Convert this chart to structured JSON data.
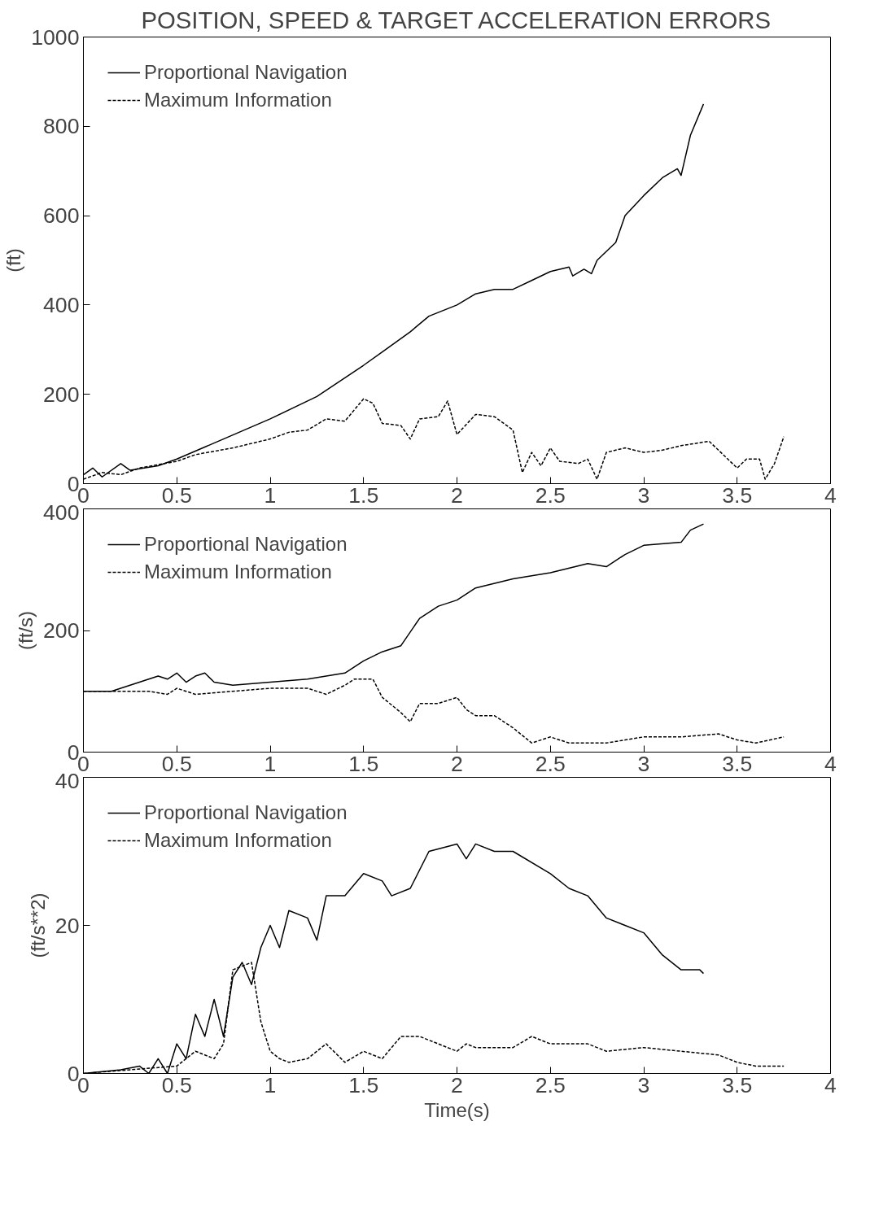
{
  "chart_data": [
    {
      "type": "line",
      "title": "POSITION, SPEED & TARGET ACCELERATION ERRORS",
      "ylabel": "(ft)",
      "xlim": [
        0,
        4
      ],
      "xticks": [
        0,
        0.5,
        1,
        1.5,
        2,
        2.5,
        3,
        3.5,
        4
      ],
      "ylim": [
        0,
        1000
      ],
      "yticks": [
        0,
        200,
        400,
        600,
        800,
        1000
      ],
      "grid": false,
      "legend": "top left",
      "series": [
        {
          "name": "Proportional Navigation",
          "color": "#000000",
          "line_style": "solid",
          "x": [
            0,
            0.05,
            0.1,
            0.2,
            0.25,
            0.4,
            0.5,
            0.75,
            1.0,
            1.25,
            1.5,
            1.6,
            1.75,
            1.85,
            2.0,
            2.1,
            2.2,
            2.3,
            2.4,
            2.5,
            2.6,
            2.62,
            2.68,
            2.72,
            2.75,
            2.8,
            2.85,
            2.9,
            3.0,
            3.1,
            3.18,
            3.2,
            3.25,
            3.32
          ],
          "values": [
            20,
            35,
            15,
            45,
            30,
            40,
            55,
            100,
            145,
            195,
            265,
            295,
            340,
            375,
            400,
            425,
            435,
            435,
            455,
            475,
            485,
            465,
            480,
            470,
            500,
            520,
            540,
            600,
            645,
            685,
            705,
            690,
            780,
            850
          ]
        },
        {
          "name": "Maximum Information",
          "color": "#000000",
          "line_style": "dashed",
          "x": [
            0,
            0.1,
            0.2,
            0.3,
            0.5,
            0.6,
            0.8,
            1.0,
            1.1,
            1.2,
            1.3,
            1.4,
            1.5,
            1.55,
            1.6,
            1.7,
            1.75,
            1.8,
            1.9,
            1.95,
            2.0,
            2.1,
            2.2,
            2.3,
            2.35,
            2.4,
            2.45,
            2.5,
            2.55,
            2.65,
            2.7,
            2.75,
            2.8,
            2.9,
            3.0,
            3.1,
            3.2,
            3.35,
            3.45,
            3.5,
            3.55,
            3.62,
            3.65,
            3.7,
            3.75
          ],
          "values": [
            10,
            25,
            20,
            35,
            50,
            65,
            80,
            100,
            115,
            120,
            145,
            140,
            190,
            180,
            135,
            130,
            100,
            145,
            150,
            185,
            110,
            155,
            150,
            120,
            25,
            70,
            40,
            80,
            50,
            45,
            55,
            10,
            70,
            80,
            70,
            75,
            85,
            95,
            55,
            35,
            55,
            55,
            10,
            45,
            105
          ]
        }
      ]
    },
    {
      "type": "line",
      "ylabel": "(ft/s)",
      "xlim": [
        0,
        4
      ],
      "xticks": [
        0,
        0.5,
        1,
        1.5,
        2,
        2.5,
        3,
        3.5,
        4
      ],
      "ylim": [
        0,
        400
      ],
      "yticks": [
        0,
        200,
        400
      ],
      "grid": false,
      "legend": "top left",
      "series": [
        {
          "name": "Proportional Navigation",
          "color": "#000000",
          "line_style": "solid",
          "x": [
            0,
            0.15,
            0.3,
            0.4,
            0.45,
            0.5,
            0.55,
            0.6,
            0.65,
            0.7,
            0.8,
            1.0,
            1.2,
            1.4,
            1.5,
            1.6,
            1.7,
            1.8,
            1.9,
            2.0,
            2.1,
            2.3,
            2.5,
            2.7,
            2.8,
            2.9,
            3.0,
            3.2,
            3.25,
            3.32
          ],
          "values": [
            100,
            100,
            115,
            125,
            120,
            130,
            115,
            125,
            130,
            115,
            110,
            115,
            120,
            130,
            150,
            165,
            175,
            220,
            240,
            250,
            270,
            285,
            295,
            310,
            305,
            325,
            340,
            345,
            365,
            375
          ]
        },
        {
          "name": "Maximum Information",
          "color": "#000000",
          "line_style": "dashed",
          "x": [
            0,
            0.2,
            0.35,
            0.45,
            0.5,
            0.6,
            0.8,
            1.0,
            1.2,
            1.3,
            1.4,
            1.45,
            1.55,
            1.6,
            1.7,
            1.75,
            1.8,
            1.9,
            2.0,
            2.05,
            2.1,
            2.2,
            2.3,
            2.4,
            2.5,
            2.6,
            2.8,
            2.9,
            3.0,
            3.2,
            3.4,
            3.5,
            3.6,
            3.75
          ],
          "values": [
            100,
            100,
            100,
            95,
            105,
            95,
            100,
            105,
            105,
            95,
            110,
            120,
            120,
            90,
            65,
            50,
            80,
            80,
            90,
            70,
            60,
            60,
            40,
            15,
            25,
            15,
            15,
            20,
            25,
            25,
            30,
            20,
            15,
            25
          ]
        }
      ]
    },
    {
      "type": "line",
      "ylabel": "(ft/s**2)",
      "xlabel": "Time(s)",
      "xlim": [
        0,
        4
      ],
      "xticks": [
        0,
        0.5,
        1,
        1.5,
        2,
        2.5,
        3,
        3.5,
        4
      ],
      "ylim": [
        0,
        40
      ],
      "yticks": [
        0,
        20,
        40
      ],
      "grid": false,
      "legend": "top left",
      "series": [
        {
          "name": "Proportional Navigation",
          "color": "#000000",
          "line_style": "solid",
          "x": [
            0,
            0.2,
            0.3,
            0.35,
            0.4,
            0.45,
            0.5,
            0.55,
            0.6,
            0.65,
            0.7,
            0.75,
            0.8,
            0.85,
            0.9,
            0.95,
            1.0,
            1.05,
            1.1,
            1.2,
            1.25,
            1.3,
            1.4,
            1.5,
            1.6,
            1.65,
            1.75,
            1.85,
            2.0,
            2.05,
            2.1,
            2.2,
            2.3,
            2.5,
            2.6,
            2.7,
            2.8,
            2.9,
            3.0,
            3.1,
            3.2,
            3.3,
            3.32
          ],
          "values": [
            0,
            0.5,
            1,
            0,
            2,
            0,
            4,
            2,
            8,
            5,
            10,
            5,
            13,
            15,
            12,
            17,
            20,
            17,
            22,
            21,
            18,
            24,
            24,
            27,
            26,
            24,
            25,
            30,
            31,
            29,
            31,
            30,
            30,
            27,
            25,
            24,
            21,
            20,
            19,
            16,
            14,
            14,
            13.5
          ]
        },
        {
          "name": "Maximum Information",
          "color": "#000000",
          "line_style": "dashed",
          "x": [
            0,
            0.5,
            0.6,
            0.7,
            0.75,
            0.8,
            0.9,
            0.95,
            1.0,
            1.05,
            1.1,
            1.2,
            1.3,
            1.4,
            1.5,
            1.6,
            1.7,
            1.8,
            1.9,
            2.0,
            2.05,
            2.1,
            2.3,
            2.4,
            2.5,
            2.7,
            2.8,
            3.0,
            3.2,
            3.4,
            3.5,
            3.6,
            3.75
          ],
          "values": [
            0,
            1,
            3,
            2,
            4,
            14,
            15,
            7,
            3,
            2,
            1.5,
            2,
            4,
            1.5,
            3,
            2,
            5,
            5,
            4,
            3,
            4,
            3.5,
            3.5,
            5,
            4,
            4,
            3,
            3.5,
            3,
            2.5,
            1.5,
            1,
            1
          ]
        }
      ]
    }
  ]
}
